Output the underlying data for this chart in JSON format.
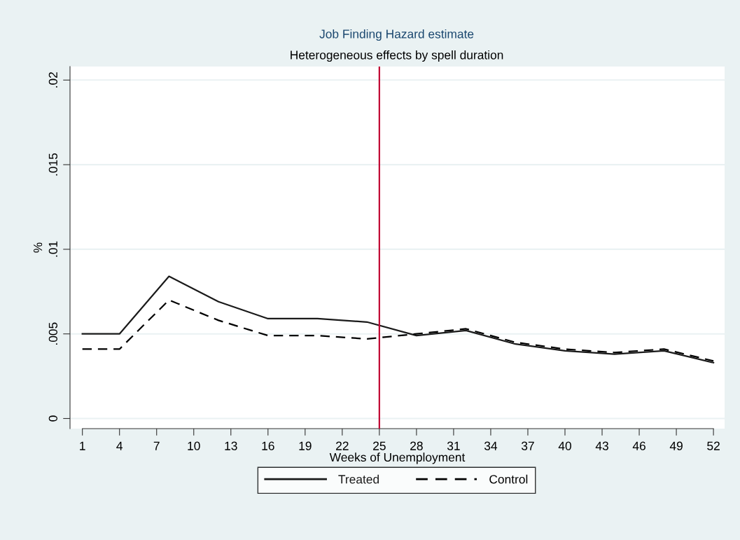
{
  "chart_data": {
    "type": "line",
    "title": "Job Finding Hazard estimate",
    "subtitle": "Heterogeneous effects by spell duration",
    "xlabel": "Weeks of Unemployment",
    "ylabel": "%",
    "x": [
      1,
      4,
      8,
      12,
      16,
      20,
      24,
      28,
      32,
      36,
      40,
      44,
      48,
      52
    ],
    "series": [
      {
        "name": "Treated",
        "color": "#1a1a1a",
        "line_style": "solid",
        "values": [
          0.005,
          0.005,
          0.0084,
          0.0069,
          0.0059,
          0.0059,
          0.0057,
          0.0049,
          0.0052,
          0.0044,
          0.004,
          0.0038,
          0.004,
          0.0033
        ]
      },
      {
        "name": "Control",
        "color": "#000000",
        "line_style": "dashed",
        "values": [
          0.0041,
          0.0041,
          0.007,
          0.0058,
          0.0049,
          0.0049,
          0.0047,
          0.005,
          0.0053,
          0.0045,
          0.0041,
          0.0039,
          0.0041,
          0.0034
        ]
      }
    ],
    "xlim": [
      0,
      52.9
    ],
    "xticks": [
      1,
      4,
      7,
      10,
      13,
      16,
      19,
      22,
      25,
      28,
      31,
      34,
      37,
      40,
      43,
      46,
      49,
      52
    ],
    "ylim": [
      -0.0006,
      0.0208
    ],
    "yticks": [
      {
        "value": 0,
        "label": "0"
      },
      {
        "value": 0.005,
        "label": ".005"
      },
      {
        "value": 0.01,
        "label": ".01"
      },
      {
        "value": 0.015,
        "label": ".015"
      },
      {
        "value": 0.02,
        "label": ".02"
      }
    ],
    "ref_lines": [
      {
        "axis": "x",
        "value": 25,
        "label": null,
        "color": "#c10534"
      }
    ],
    "grid": "y",
    "legend": "bottom"
  }
}
